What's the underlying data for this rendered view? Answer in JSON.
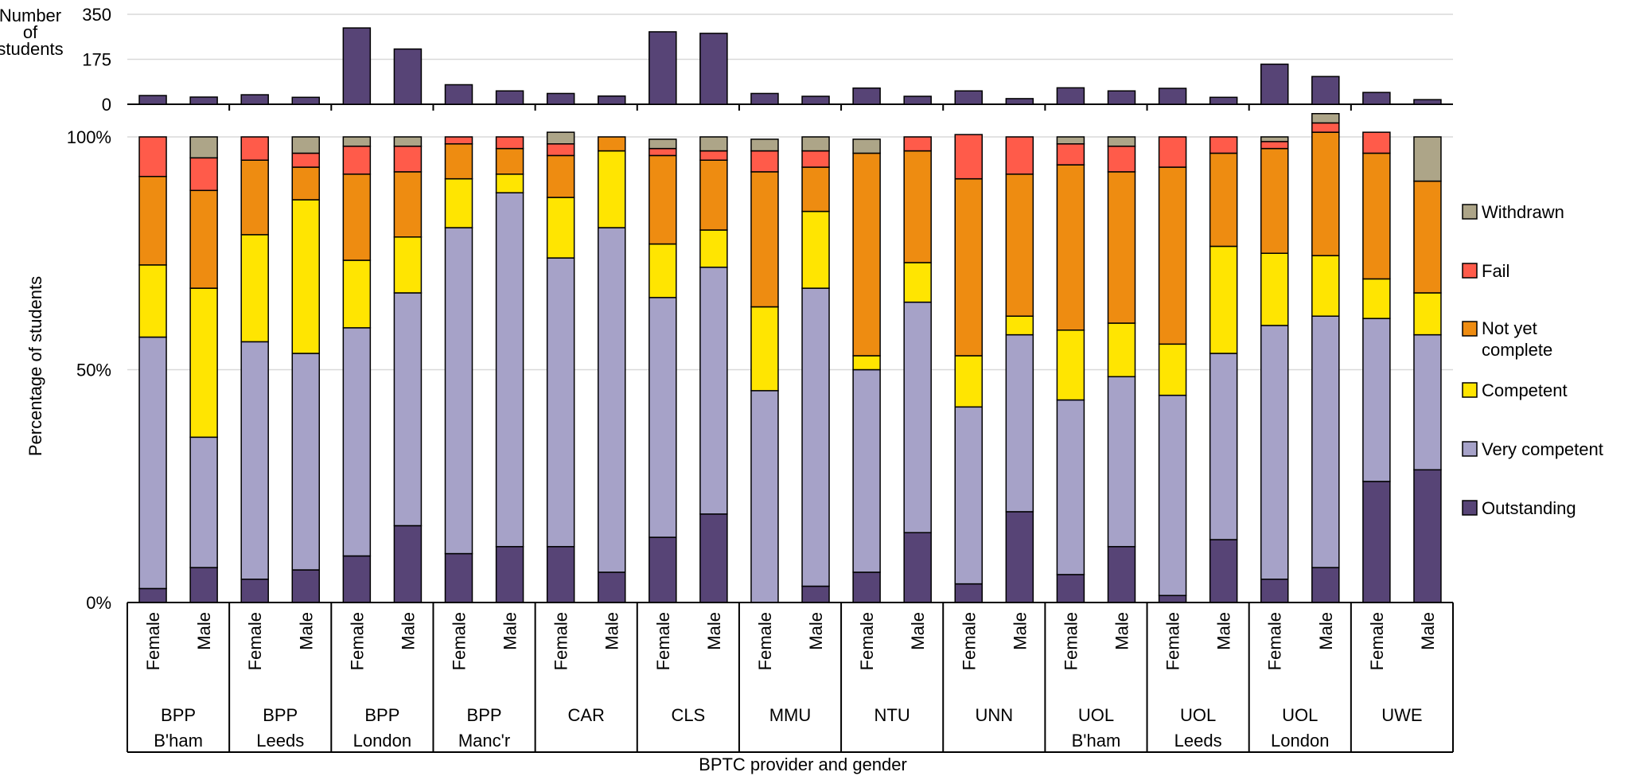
{
  "chart_data": [
    {
      "type": "bar",
      "ylabel": "Number of students",
      "ylabel_lines": [
        "Number",
        "of",
        "students"
      ],
      "ylim": [
        0,
        350
      ],
      "yticks": [
        0,
        175,
        350
      ],
      "grid": true,
      "bar_color": "#574476",
      "series": [
        {
          "values": [
            34,
            28,
            37,
            27,
            297,
            215,
            76,
            52,
            42,
            32,
            282,
            276,
            42,
            31,
            63,
            31,
            52,
            22,
            64,
            52,
            62,
            27,
            156,
            108,
            46,
            18
          ]
        }
      ]
    },
    {
      "type": "bar",
      "stacked": true,
      "ylabel": "Percentage of students",
      "xlabel": "BPTC provider and gender",
      "ylim": [
        0,
        100
      ],
      "yticks": [
        "0%",
        "50%",
        "100%"
      ],
      "grid": true,
      "legend_position": "right",
      "groups": [
        {
          "lines": [
            "BPP",
            "B'ham"
          ]
        },
        {
          "lines": [
            "BPP",
            "Leeds"
          ]
        },
        {
          "lines": [
            "BPP",
            "London"
          ]
        },
        {
          "lines": [
            "BPP",
            "Manc'r"
          ]
        },
        {
          "lines": [
            "CAR"
          ]
        },
        {
          "lines": [
            "CLS"
          ]
        },
        {
          "lines": [
            "MMU"
          ]
        },
        {
          "lines": [
            "NTU"
          ]
        },
        {
          "lines": [
            "UNN"
          ]
        },
        {
          "lines": [
            "UOL",
            "B'ham"
          ]
        },
        {
          "lines": [
            "UOL",
            "Leeds"
          ]
        },
        {
          "lines": [
            "UOL",
            "London"
          ]
        },
        {
          "lines": [
            "UWE"
          ]
        }
      ],
      "genders": [
        "Female",
        "Male"
      ],
      "series": [
        {
          "name": "Outstanding",
          "color": "#574476",
          "values": [
            3,
            7.5,
            5,
            7,
            10,
            16.5,
            10.5,
            12,
            12,
            6.5,
            14,
            19,
            0,
            3.5,
            6.5,
            15,
            4,
            19.5,
            6,
            12,
            1.5,
            13.5,
            5,
            7.5,
            26,
            28.5
          ]
        },
        {
          "name": "Very competent",
          "color": "#A6A2C8",
          "values": [
            54,
            28,
            51,
            46.5,
            49,
            50,
            70,
            76,
            62,
            74,
            51.5,
            53,
            45.5,
            64,
            43.5,
            49.5,
            38,
            38,
            37.5,
            36.5,
            43,
            40,
            54.5,
            54,
            35,
            29
          ]
        },
        {
          "name": "Competent",
          "color": "#FFE501",
          "values": [
            15.5,
            32,
            23,
            33,
            14.5,
            12,
            10.5,
            4,
            13,
            16.5,
            11.5,
            8,
            18,
            16.5,
            3,
            8.5,
            11,
            4,
            15,
            11.5,
            11,
            23,
            15.5,
            13,
            8.5,
            9
          ]
        },
        {
          "name": "Not yet complete",
          "color": "#EE8C11",
          "values": [
            19,
            21,
            16,
            7,
            18.5,
            14,
            7.5,
            5.5,
            9,
            3,
            19,
            15,
            29,
            9.5,
            43.5,
            24,
            38,
            30.5,
            35.5,
            32.5,
            38,
            20,
            22.5,
            26.5,
            27,
            24
          ]
        },
        {
          "name": "Fail",
          "color": "#FF5B4A",
          "values": [
            8.5,
            7,
            5,
            3,
            6,
            5.5,
            1.5,
            2.5,
            2.5,
            0,
            1.5,
            2,
            4.5,
            3.5,
            0,
            3,
            9.5,
            8,
            4.5,
            5.5,
            6.5,
            3.5,
            1.5,
            2,
            4.5,
            0
          ]
        },
        {
          "name": "Withdrawn",
          "color": "#ADA588",
          "values": [
            0,
            4.5,
            0,
            3.5,
            2,
            2,
            0,
            0,
            2.5,
            0,
            2,
            3,
            2.5,
            3,
            3,
            0,
            0,
            0,
            1.5,
            2,
            0,
            0,
            1,
            2,
            0,
            9.5
          ]
        }
      ]
    }
  ]
}
